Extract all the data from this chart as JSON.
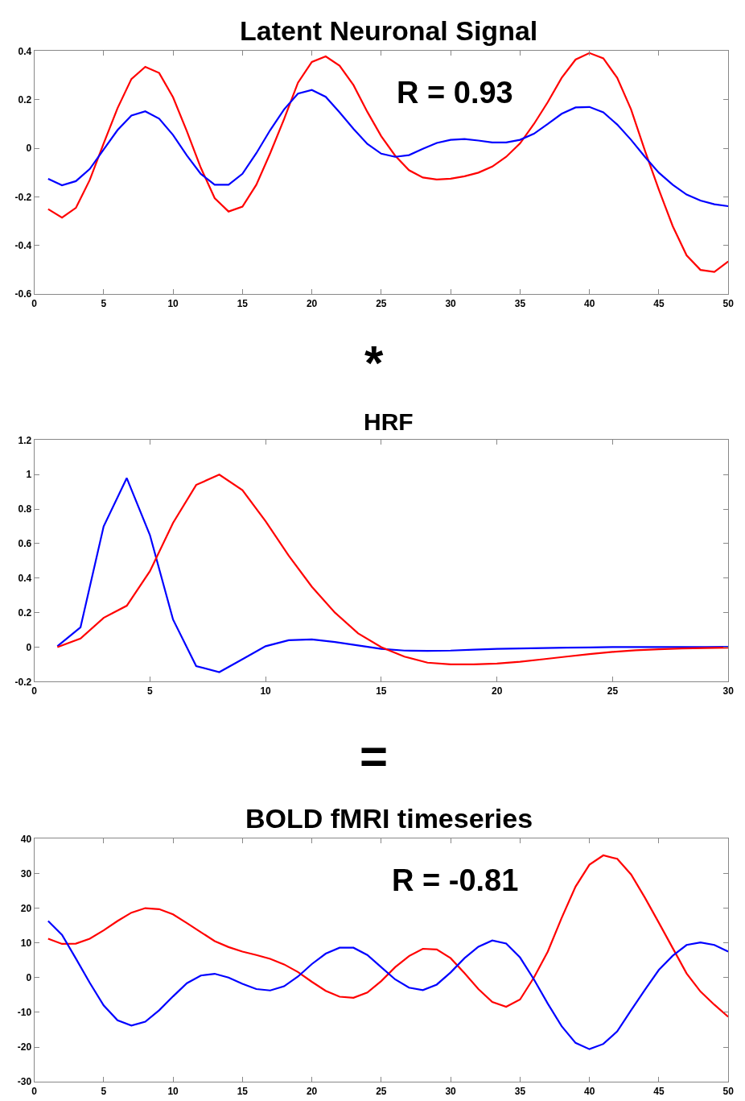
{
  "chart_data": [
    {
      "type": "line",
      "title": "Latent Neuronal Signal",
      "annotations": [
        "R = 0.93",
        "*"
      ],
      "x": [
        1,
        2,
        3,
        4,
        5,
        6,
        7,
        8,
        9,
        10,
        11,
        12,
        13,
        14,
        15,
        16,
        17,
        18,
        19,
        20,
        21,
        22,
        23,
        24,
        25,
        26,
        27,
        28,
        29,
        30,
        31,
        32,
        33,
        34,
        35,
        36,
        37,
        38,
        39,
        40,
        41,
        42,
        43,
        44,
        45,
        46,
        47,
        48,
        49,
        50
      ],
      "series": [
        {
          "color": "#ff0000",
          "values": [
            -0.25,
            -0.285,
            -0.245,
            -0.13,
            0.02,
            0.165,
            0.285,
            0.335,
            0.31,
            0.21,
            0.07,
            -0.08,
            -0.205,
            -0.26,
            -0.24,
            -0.15,
            -0.02,
            0.12,
            0.27,
            0.355,
            0.378,
            0.34,
            0.26,
            0.15,
            0.05,
            -0.03,
            -0.09,
            -0.12,
            -0.128,
            -0.125,
            -0.115,
            -0.1,
            -0.075,
            -0.035,
            0.02,
            0.1,
            0.19,
            0.29,
            0.365,
            0.392,
            0.37,
            0.29,
            0.16,
            -0.01,
            -0.17,
            -0.32,
            -0.44,
            -0.5,
            -0.508,
            -0.465
          ]
        },
        {
          "color": "#0000ff",
          "values": [
            -0.125,
            -0.152,
            -0.135,
            -0.085,
            -0.005,
            0.075,
            0.135,
            0.152,
            0.122,
            0.055,
            -0.03,
            -0.105,
            -0.15,
            -0.15,
            -0.105,
            -0.02,
            0.075,
            0.16,
            0.225,
            0.24,
            0.212,
            0.148,
            0.08,
            0.018,
            -0.022,
            -0.035,
            -0.028,
            -0.002,
            0.022,
            0.035,
            0.038,
            0.032,
            0.024,
            0.024,
            0.035,
            0.06,
            0.1,
            0.142,
            0.168,
            0.17,
            0.148,
            0.098,
            0.035,
            -0.035,
            -0.1,
            -0.15,
            -0.19,
            -0.215,
            -0.23,
            -0.238
          ]
        }
      ],
      "xlim": [
        0,
        50
      ],
      "xticks": [
        0,
        5,
        10,
        15,
        20,
        25,
        30,
        35,
        40,
        45,
        50
      ],
      "ylim": [
        -0.6,
        0.4
      ],
      "yticks": [
        -0.6,
        -0.4,
        -0.2,
        0,
        0.2,
        0.4
      ]
    },
    {
      "type": "line",
      "title": "HRF",
      "annotations": [
        "="
      ],
      "x": [
        1,
        2,
        3,
        4,
        5,
        6,
        7,
        8,
        9,
        10,
        11,
        12,
        13,
        14,
        15,
        16,
        17,
        18,
        19,
        20,
        21,
        22,
        23,
        24,
        25,
        26,
        27,
        28,
        29,
        30
      ],
      "series": [
        {
          "color": "#0000ff",
          "values": [
            0.005,
            0.115,
            0.7,
            0.98,
            0.65,
            0.16,
            -0.11,
            -0.145,
            -0.07,
            0.005,
            0.04,
            0.045,
            0.03,
            0.01,
            -0.01,
            -0.02,
            -0.022,
            -0.02,
            -0.015,
            -0.01,
            -0.008,
            -0.005,
            -0.003,
            -0.002,
            0,
            0,
            0,
            0,
            0,
            0.002
          ]
        },
        {
          "color": "#ff0000",
          "values": [
            0,
            0.05,
            0.17,
            0.24,
            0.44,
            0.72,
            0.94,
            1.0,
            0.91,
            0.73,
            0.53,
            0.35,
            0.2,
            0.08,
            0,
            -0.055,
            -0.09,
            -0.1,
            -0.1,
            -0.095,
            -0.085,
            -0.07,
            -0.055,
            -0.04,
            -0.028,
            -0.018,
            -0.012,
            -0.008,
            -0.005,
            -0.003
          ]
        }
      ],
      "xlim": [
        0,
        30
      ],
      "xticks": [
        0,
        5,
        10,
        15,
        20,
        25,
        30
      ],
      "ylim": [
        -0.2,
        1.2
      ],
      "yticks": [
        -0.2,
        0,
        0.2,
        0.4,
        0.6,
        0.8,
        1,
        1.2
      ]
    },
    {
      "type": "line",
      "title": "BOLD fMRI timeseries",
      "annotations": [
        "R = -0.81"
      ],
      "x": [
        1,
        2,
        3,
        4,
        5,
        6,
        7,
        8,
        9,
        10,
        11,
        12,
        13,
        14,
        15,
        16,
        17,
        18,
        19,
        20,
        21,
        22,
        23,
        24,
        25,
        26,
        27,
        28,
        29,
        30,
        31,
        32,
        33,
        34,
        35,
        36,
        37,
        38,
        39,
        40,
        41,
        42,
        43,
        44,
        45,
        46,
        47,
        48,
        49,
        50
      ],
      "series": [
        {
          "color": "#ff0000",
          "values": [
            11.2,
            9.7,
            9.8,
            11.2,
            13.6,
            16.3,
            18.7,
            20,
            19.7,
            18.2,
            15.7,
            13.1,
            10.5,
            8.8,
            7.5,
            6.5,
            5.4,
            3.8,
            1.6,
            -1.2,
            -3.8,
            -5.5,
            -5.8,
            -4.3,
            -1,
            3,
            6.2,
            8.3,
            8.1,
            5.6,
            1.3,
            -3.3,
            -7,
            -8.4,
            -6.3,
            0,
            7.5,
            17.2,
            26.2,
            32.5,
            35.2,
            34.2,
            29.7,
            23,
            15.8,
            8.5,
            1.2,
            -4,
            -7.8,
            -11.3
          ]
        },
        {
          "color": "#0000ff",
          "values": [
            16.3,
            12.3,
            5.5,
            -1.5,
            -8,
            -12.3,
            -13.8,
            -12.7,
            -9.4,
            -5.4,
            -1.6,
            0.6,
            1.1,
            0,
            -1.8,
            -3.3,
            -3.7,
            -2.5,
            0.3,
            3.9,
            6.9,
            8.6,
            8.6,
            6.5,
            3,
            -0.5,
            -2.9,
            -3.6,
            -2,
            1.5,
            5.6,
            8.9,
            10.7,
            9.8,
            5.8,
            -0.5,
            -7.5,
            -14,
            -18.8,
            -20.6,
            -19.1,
            -15.5,
            -9.4,
            -3.5,
            2.2,
            6.3,
            9.4,
            10.1,
            9.4,
            7.5
          ]
        }
      ],
      "xlim": [
        0,
        50
      ],
      "xticks": [
        0,
        5,
        10,
        15,
        20,
        25,
        30,
        35,
        40,
        45,
        50
      ],
      "ylim": [
        -30,
        40
      ],
      "yticks": [
        -30,
        -20,
        -10,
        0,
        10,
        20,
        30,
        40
      ]
    }
  ]
}
